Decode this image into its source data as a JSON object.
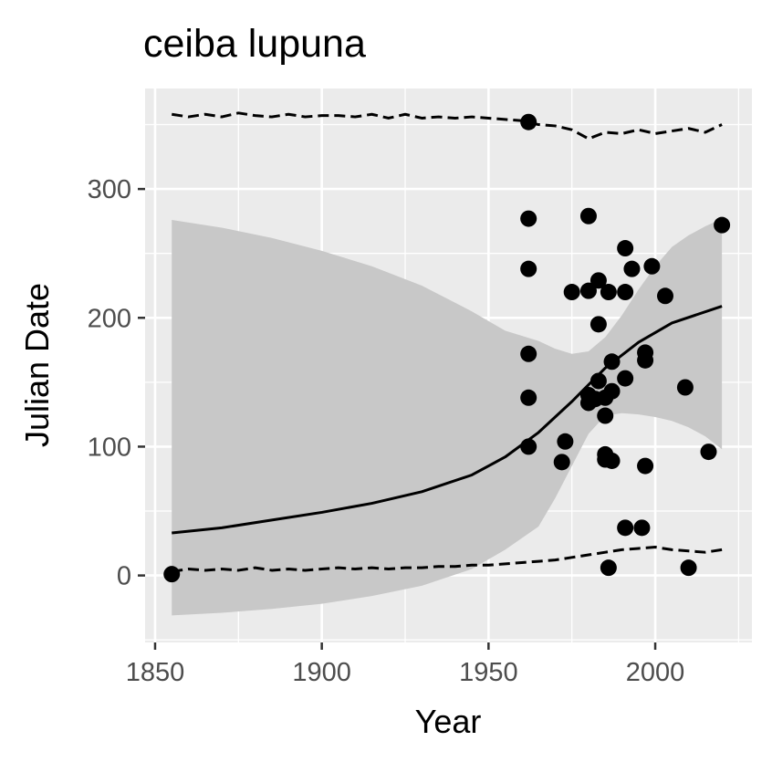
{
  "chart_data": {
    "type": "scatter",
    "title": "ceiba lupuna",
    "xlabel": "Year",
    "ylabel": "Julian Date",
    "xlim": [
      1847,
      2029
    ],
    "ylim": [
      -52,
      378
    ],
    "xticks": [
      1850,
      1900,
      1950,
      2000
    ],
    "yticks": [
      0,
      100,
      200,
      300
    ],
    "grid": true,
    "panel_background": "#ebebeb",
    "grid_color": "#ffffff",
    "ribbon_color": "#c8c8c8",
    "point_color": "#000000",
    "points": [
      {
        "x": 1855,
        "y": 1
      },
      {
        "x": 1962,
        "y": 352
      },
      {
        "x": 1962,
        "y": 277
      },
      {
        "x": 1962,
        "y": 238
      },
      {
        "x": 1962,
        "y": 172
      },
      {
        "x": 1962,
        "y": 138
      },
      {
        "x": 1962,
        "y": 100
      },
      {
        "x": 1972,
        "y": 88
      },
      {
        "x": 1973,
        "y": 104
      },
      {
        "x": 1975,
        "y": 220
      },
      {
        "x": 1980,
        "y": 279
      },
      {
        "x": 1980,
        "y": 221
      },
      {
        "x": 1980,
        "y": 140
      },
      {
        "x": 1980,
        "y": 134
      },
      {
        "x": 1982,
        "y": 137
      },
      {
        "x": 1983,
        "y": 229
      },
      {
        "x": 1983,
        "y": 195
      },
      {
        "x": 1983,
        "y": 151
      },
      {
        "x": 1985,
        "y": 138
      },
      {
        "x": 1985,
        "y": 124
      },
      {
        "x": 1985,
        "y": 94
      },
      {
        "x": 1985,
        "y": 90
      },
      {
        "x": 1986,
        "y": 220
      },
      {
        "x": 1986,
        "y": 6
      },
      {
        "x": 1987,
        "y": 166
      },
      {
        "x": 1987,
        "y": 143
      },
      {
        "x": 1987,
        "y": 89
      },
      {
        "x": 1991,
        "y": 254
      },
      {
        "x": 1991,
        "y": 220
      },
      {
        "x": 1991,
        "y": 153
      },
      {
        "x": 1991,
        "y": 37
      },
      {
        "x": 1993,
        "y": 238
      },
      {
        "x": 1996,
        "y": 37
      },
      {
        "x": 1997,
        "y": 173
      },
      {
        "x": 1997,
        "y": 167
      },
      {
        "x": 1997,
        "y": 85
      },
      {
        "x": 1999,
        "y": 240
      },
      {
        "x": 2003,
        "y": 217
      },
      {
        "x": 2009,
        "y": 146
      },
      {
        "x": 2010,
        "y": 6
      },
      {
        "x": 2016,
        "y": 96
      },
      {
        "x": 2020,
        "y": 272
      }
    ],
    "fit_line": {
      "x": [
        1855,
        1870,
        1885,
        1900,
        1915,
        1930,
        1945,
        1955,
        1965,
        1975,
        1985,
        1995,
        2005,
        2020
      ],
      "y": [
        33,
        37,
        43,
        49,
        56,
        65,
        78,
        92,
        111,
        135,
        161,
        181,
        196,
        209
      ]
    },
    "ribbon": {
      "x": [
        1855,
        1870,
        1885,
        1900,
        1915,
        1930,
        1945,
        1955,
        1965,
        1970,
        1975,
        1980,
        1985,
        1990,
        1995,
        2000,
        2005,
        2010,
        2015,
        2020
      ],
      "upper": [
        276,
        270,
        262,
        252,
        240,
        225,
        205,
        190,
        182,
        176,
        172,
        174,
        185,
        202,
        222,
        240,
        255,
        264,
        271,
        277
      ],
      "lower": [
        -31,
        -29,
        -26,
        -22,
        -16,
        -8,
        5,
        20,
        38,
        60,
        85,
        110,
        124,
        126,
        125,
        123,
        120,
        115,
        108,
        98
      ]
    },
    "dashed_upper": {
      "x": [
        1855,
        1860,
        1865,
        1870,
        1875,
        1880,
        1885,
        1890,
        1895,
        1900,
        1905,
        1910,
        1915,
        1920,
        1925,
        1930,
        1935,
        1940,
        1945,
        1950,
        1955,
        1960,
        1965,
        1970,
        1975,
        1980,
        1985,
        1990,
        1995,
        2000,
        2005,
        2010,
        2015,
        2020
      ],
      "y": [
        358,
        356,
        358,
        356,
        359,
        357,
        356,
        358,
        356,
        357,
        357,
        356,
        358,
        355,
        358,
        355,
        356,
        355,
        356,
        355,
        354,
        353,
        350,
        349,
        346,
        339,
        344,
        343,
        346,
        343,
        345,
        347,
        344,
        350
      ]
    },
    "dashed_lower": {
      "x": [
        1855,
        1860,
        1865,
        1870,
        1875,
        1880,
        1885,
        1890,
        1895,
        1900,
        1905,
        1910,
        1915,
        1920,
        1925,
        1930,
        1935,
        1940,
        1945,
        1950,
        1955,
        1960,
        1965,
        1970,
        1975,
        1980,
        1985,
        1990,
        1995,
        2000,
        2005,
        2010,
        2015,
        2020
      ],
      "y": [
        3,
        5,
        4,
        5,
        4,
        6,
        4,
        5,
        4,
        5,
        6,
        5,
        6,
        5,
        6,
        6,
        7,
        7,
        8,
        8,
        9,
        10,
        11,
        12,
        14,
        16,
        18,
        20,
        21,
        22,
        20,
        19,
        18,
        20
      ]
    }
  }
}
